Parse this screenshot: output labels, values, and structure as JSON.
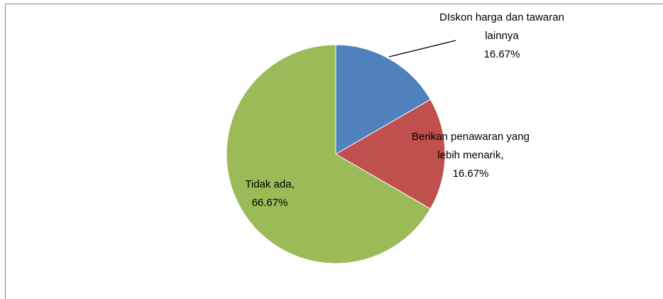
{
  "chart_data": {
    "type": "pie",
    "categories": [
      "DIskon harga dan tawaran lainnya",
      "Berikan penawaran yang lebih menarik,",
      "Tidak ada,"
    ],
    "values": [
      16.67,
      16.67,
      66.67
    ],
    "value_labels": [
      "16.67%",
      "16.67%",
      "66.67%"
    ],
    "colors": [
      "#4f81bd",
      "#c0504d",
      "#9bbb59"
    ]
  }
}
